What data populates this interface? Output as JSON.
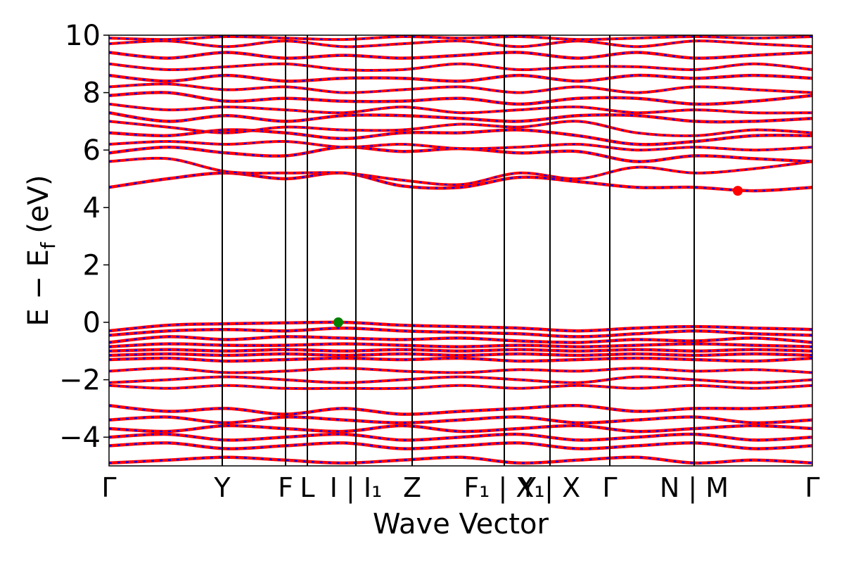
{
  "chart_data": {
    "type": "line",
    "xlabel": "Wave Vector",
    "ylabel": "E − E_f (eV)",
    "ylabel_main": "E − E",
    "ylabel_sub": "f",
    "ylabel_unit": " (eV)",
    "ylim": [
      -5,
      10
    ],
    "yticks": [
      -4,
      -2,
      0,
      2,
      4,
      6,
      8,
      10
    ],
    "ytick_labels": [
      "−4",
      "−2",
      "0",
      "2",
      "4",
      "6",
      "8",
      "10"
    ],
    "xlim": [
      0,
      1
    ],
    "kpoints": [
      {
        "label": "Γ",
        "x": 0.0
      },
      {
        "label": "Y",
        "x": 0.161
      },
      {
        "label": "F",
        "x": 0.251
      },
      {
        "label": "L",
        "x": 0.282
      },
      {
        "label": "I | I₁",
        "x": 0.351
      },
      {
        "label": "Z",
        "x": 0.431
      },
      {
        "label": "F₁ | X₁",
        "x": 0.562
      },
      {
        "label": "Y | X",
        "x": 0.627
      },
      {
        "label": "Γ",
        "x": 0.712
      },
      {
        "label": "N | M",
        "x": 0.832
      },
      {
        "label": "Γ",
        "x": 1.0
      }
    ],
    "grid": false,
    "legend": "none",
    "series_styles": [
      {
        "color": "#ff0000",
        "dash": "solid"
      },
      {
        "color": "#0000ff",
        "dash": "dashed"
      }
    ],
    "bands": [
      {
        "y": [
          4.7,
          5.0,
          5.2,
          5.0,
          5.2,
          4.75,
          4.7,
          5.05,
          4.9,
          4.7,
          4.7,
          4.58,
          4.7
        ],
        "w": 3
      },
      {
        "y": [
          5.6,
          5.7,
          5.25,
          5.2,
          5.2,
          4.95,
          4.8,
          5.2,
          5.0,
          5.4,
          5.2,
          5.35,
          5.6
        ],
        "w": 2.5
      },
      {
        "y": [
          5.9,
          6.1,
          5.9,
          5.8,
          6.1,
          5.95,
          6.05,
          5.9,
          5.95,
          5.6,
          5.8,
          5.7,
          5.6
        ],
        "w": 3
      },
      {
        "y": [
          6.2,
          6.3,
          6.2,
          6.3,
          6.1,
          6.2,
          6.05,
          6.1,
          6.2,
          6.0,
          6.1,
          6.0,
          6.1
        ],
        "w": 2.5
      },
      {
        "y": [
          6.6,
          6.5,
          6.7,
          6.6,
          6.4,
          6.6,
          6.6,
          6.7,
          6.5,
          6.2,
          6.3,
          6.5,
          6.5
        ],
        "w": 3
      },
      {
        "y": [
          7.0,
          6.8,
          6.6,
          6.8,
          6.7,
          6.7,
          6.9,
          6.8,
          7.0,
          6.6,
          6.5,
          6.7,
          6.6
        ],
        "w": 2.5
      },
      {
        "y": [
          7.3,
          7.0,
          7.2,
          7.0,
          7.2,
          7.2,
          7.1,
          7.0,
          7.2,
          7.2,
          7.0,
          7.0,
          7.1
        ],
        "w": 3
      },
      {
        "y": [
          7.6,
          7.4,
          7.5,
          7.4,
          7.3,
          7.5,
          7.3,
          7.4,
          7.5,
          7.3,
          7.4,
          7.3,
          7.3
        ],
        "w": 2.5
      },
      {
        "y": [
          7.9,
          8.0,
          7.7,
          7.8,
          7.7,
          7.7,
          7.8,
          7.6,
          7.8,
          7.8,
          7.6,
          7.7,
          7.9
        ],
        "w": 3
      },
      {
        "y": [
          8.2,
          8.3,
          8.1,
          8.2,
          8.0,
          8.1,
          8.2,
          8.0,
          8.2,
          8.0,
          8.2,
          8.1,
          8.0
        ],
        "w": 2.5
      },
      {
        "y": [
          8.6,
          8.4,
          8.6,
          8.4,
          8.5,
          8.5,
          8.4,
          8.6,
          8.4,
          8.6,
          8.5,
          8.6,
          8.5
        ],
        "w": 3
      },
      {
        "y": [
          9.0,
          8.8,
          8.9,
          9.0,
          8.8,
          8.8,
          9.0,
          8.8,
          8.9,
          8.9,
          8.8,
          9.0,
          8.8
        ],
        "w": 2.5
      },
      {
        "y": [
          9.4,
          9.2,
          9.4,
          9.2,
          9.3,
          9.2,
          9.3,
          9.4,
          9.2,
          9.4,
          9.2,
          9.3,
          9.4
        ],
        "w": 3
      },
      {
        "y": [
          9.7,
          9.8,
          9.6,
          9.8,
          9.6,
          9.7,
          9.8,
          9.6,
          9.8,
          9.6,
          9.8,
          9.7,
          9.6
        ],
        "w": 2.5
      },
      {
        "y": [
          9.9,
          9.85,
          9.95,
          9.9,
          9.85,
          9.95,
          9.9,
          9.95,
          9.85,
          9.9,
          9.95,
          9.9,
          9.95
        ],
        "w": 2.5
      },
      {
        "y": [
          -0.3,
          -0.1,
          -0.05,
          -0.02,
          0.0,
          -0.1,
          -0.15,
          -0.2,
          -0.3,
          -0.2,
          -0.15,
          -0.2,
          -0.25
        ],
        "w": 3
      },
      {
        "y": [
          -0.45,
          -0.3,
          -0.25,
          -0.3,
          -0.2,
          -0.3,
          -0.35,
          -0.4,
          -0.5,
          -0.4,
          -0.3,
          -0.4,
          -0.45
        ],
        "w": 3
      },
      {
        "y": [
          -0.7,
          -0.5,
          -0.6,
          -0.5,
          -0.55,
          -0.6,
          -0.55,
          -0.65,
          -0.7,
          -0.6,
          -0.65,
          -0.55,
          -0.7
        ],
        "w": 3
      },
      {
        "y": [
          -0.85,
          -0.75,
          -0.8,
          -0.8,
          -0.75,
          -0.8,
          -0.85,
          -0.8,
          -0.85,
          -0.8,
          -0.75,
          -0.8,
          -0.85
        ],
        "w": 3
      },
      {
        "y": [
          -1.0,
          -0.95,
          -1.0,
          -0.95,
          -1.0,
          -0.95,
          -1.0,
          -0.95,
          -1.0,
          -0.95,
          -1.0,
          -0.95,
          -1.0
        ],
        "w": 3
      },
      {
        "y": [
          -1.15,
          -1.1,
          -1.15,
          -1.1,
          -1.15,
          -1.1,
          -1.15,
          -1.1,
          -1.15,
          -1.1,
          -1.15,
          -1.1,
          -1.15
        ],
        "w": 3
      },
      {
        "y": [
          -1.3,
          -1.25,
          -1.35,
          -1.3,
          -1.25,
          -1.3,
          -1.25,
          -1.35,
          -1.3,
          -1.25,
          -1.3,
          -1.35,
          -1.25
        ],
        "w": 3
      },
      {
        "y": [
          -1.7,
          -1.6,
          -1.75,
          -1.7,
          -1.6,
          -1.7,
          -1.75,
          -1.65,
          -1.7,
          -1.6,
          -1.7,
          -1.65,
          -1.75
        ],
        "w": 2.5
      },
      {
        "y": [
          -2.1,
          -2.0,
          -1.9,
          -2.0,
          -2.1,
          -2.0,
          -1.9,
          -2.0,
          -2.1,
          -1.9,
          -2.0,
          -2.1,
          -2.0
        ],
        "w": 2.5
      },
      {
        "y": [
          -2.2,
          -2.3,
          -2.2,
          -2.3,
          -2.3,
          -2.3,
          -2.2,
          -2.3,
          -2.2,
          -2.3,
          -2.2,
          -2.3,
          -2.2
        ],
        "w": 2.5
      },
      {
        "y": [
          -2.9,
          -3.1,
          -3.0,
          -3.2,
          -3.0,
          -3.2,
          -3.1,
          -3.0,
          -2.9,
          -3.1,
          -3.0,
          -3.0,
          -2.9
        ],
        "w": 3
      },
      {
        "y": [
          -3.4,
          -3.3,
          -3.5,
          -3.3,
          -3.4,
          -3.5,
          -3.4,
          -3.3,
          -3.5,
          -3.4,
          -3.3,
          -3.5,
          -3.4
        ],
        "w": 3
      },
      {
        "y": [
          -3.7,
          -3.8,
          -3.6,
          -3.7,
          -3.8,
          -3.6,
          -3.8,
          -3.7,
          -3.6,
          -3.8,
          -3.7,
          -3.6,
          -3.7
        ],
        "w": 3
      },
      {
        "y": [
          -4.0,
          -3.9,
          -4.1,
          -4.0,
          -3.9,
          -4.1,
          -4.0,
          -3.9,
          -4.1,
          -4.0,
          -3.9,
          -4.1,
          -4.0
        ],
        "w": 3
      },
      {
        "y": [
          -4.3,
          -4.2,
          -4.4,
          -4.3,
          -4.2,
          -4.4,
          -4.3,
          -4.2,
          -4.4,
          -4.3,
          -4.2,
          -4.4,
          -4.3
        ],
        "w": 3
      },
      {
        "y": [
          -4.9,
          -4.8,
          -4.7,
          -4.8,
          -4.9,
          -4.8,
          -4.7,
          -4.9,
          -4.8,
          -4.7,
          -4.9,
          -4.8,
          -4.9
        ],
        "w": 3
      }
    ],
    "markers": [
      {
        "name": "vbm-marker",
        "x": 0.326,
        "y": 0.0,
        "color": "#008000"
      },
      {
        "name": "cbm-marker",
        "x": 0.894,
        "y": 4.58,
        "color": "#ff0000"
      }
    ]
  }
}
